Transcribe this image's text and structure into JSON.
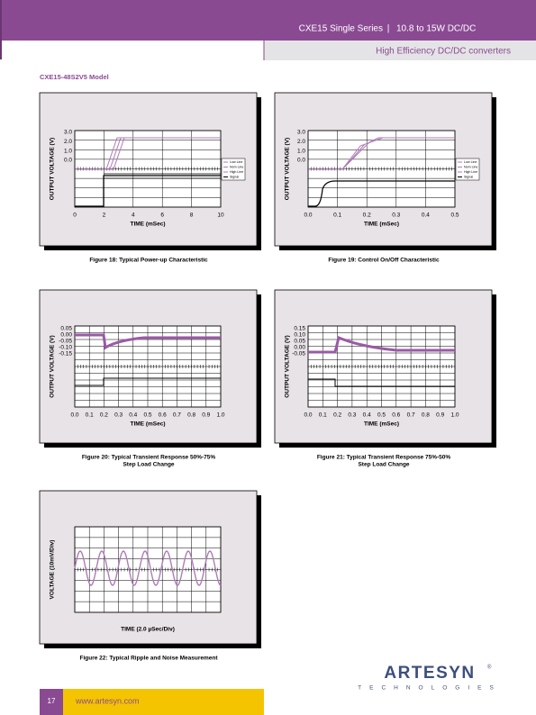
{
  "header": {
    "series": "CXE15 Single Series",
    "separator": "|",
    "range": "10.8 to 15W DC/DC",
    "subtitle": "High Efficiency DC/DC converters"
  },
  "model": "CXE15-48S2V5 Model",
  "figures": [
    {
      "caption": [
        "Figure 18: Typical Power-up Characteristic"
      ],
      "y_label": "OUTPUT VOLTAGE (V)",
      "x_label": "TIME (mSec)",
      "x_ticks": [
        "0",
        "2",
        "4",
        "6",
        "8",
        "10"
      ],
      "y_ticks": [
        "3.0",
        "2.0",
        "1.0",
        "0.0"
      ],
      "legend": [
        "Low Line",
        "Nom Line",
        "High Line",
        "Signal"
      ]
    },
    {
      "caption": [
        "Figure 19: Control On/Off Characteristic"
      ],
      "y_label": "OUTPUT VOLTAGE (V)",
      "x_label": "TIME (mSec)",
      "x_ticks": [
        "0.0",
        "0.1",
        "0.2",
        "0.3",
        "0.4",
        "0.5"
      ],
      "y_ticks": [
        "3.0",
        "2.0",
        "1.0",
        "0.0"
      ],
      "legend": [
        "Low Line",
        "Nom Line",
        "High Line",
        "Signal"
      ]
    },
    {
      "caption": [
        "Figure 20: Typical Transient Response 50%-75%",
        "Step Load Change"
      ],
      "y_label": "OUTPUT VOLTAGE (V)",
      "x_label": "TIME (mSec)",
      "x_ticks": [
        "0.0",
        "0.1",
        "0.2",
        "0.3",
        "0.4",
        "0.5",
        "0.6",
        "0.7",
        "0.8",
        "0.9",
        "1.0"
      ],
      "y_ticks": [
        "0.05",
        "0.00",
        "-0.05",
        "-0.10",
        "-0.15"
      ]
    },
    {
      "caption": [
        "Figure 21: Typical Transient Response 75%-50%",
        "Step Load Change"
      ],
      "y_label": "OUTPUT VOLTAGE (V)",
      "x_label": "TIME (mSec)",
      "x_ticks": [
        "0.0",
        "0.1",
        "0.2",
        "0.3",
        "0.4",
        "0.5",
        "0.6",
        "0.7",
        "0.8",
        "0.9",
        "1.0"
      ],
      "y_ticks": [
        "0.15",
        "0.10",
        "0.05",
        "0.00",
        "-0.05"
      ]
    },
    {
      "caption": [
        "Figure 22: Typical Ripple and Noise Measurement"
      ],
      "y_label": "VOLTAGE (10mV/Div)",
      "x_label": "TIME (2.0 µSec/Div)"
    }
  ],
  "footer": {
    "page": "17",
    "url": "www.artesyn.com"
  },
  "logo": {
    "name": "ARTESYN",
    "registered": "®",
    "tagline": "TECHNOLOGIES"
  }
}
